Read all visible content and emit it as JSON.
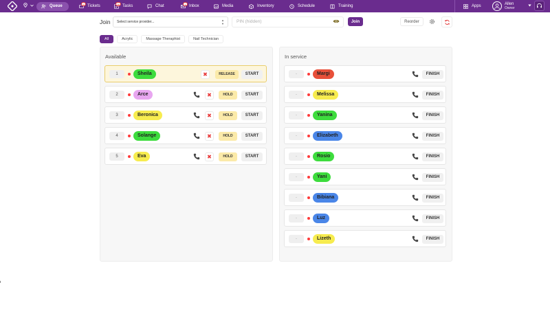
{
  "nav": {
    "items": [
      {
        "label": "Queue",
        "icon": "users-icon"
      },
      {
        "label": "Tickets",
        "icon": "ticket-icon",
        "badge": "5"
      },
      {
        "label": "Tasks",
        "icon": "tasks-icon",
        "badge": "26"
      },
      {
        "label": "Chat",
        "icon": "chat-icon"
      },
      {
        "label": "Inbox",
        "icon": "inbox-icon",
        "badge": "1"
      },
      {
        "label": "Media",
        "icon": "media-icon"
      },
      {
        "label": "Inventory",
        "icon": "inventory-icon"
      },
      {
        "label": "Schedule",
        "icon": "clock-icon"
      },
      {
        "label": "Training",
        "icon": "book-icon"
      },
      {
        "label": "Apps",
        "icon": "apps-icon"
      }
    ],
    "user": {
      "name": "Allen",
      "role": "Owner"
    }
  },
  "join": {
    "label": "Join",
    "provider_placeholder": "Select service provider...",
    "pin_placeholder": "PIN (hidden)",
    "join_button": "Join",
    "reorder_button": "Reorder"
  },
  "filters": [
    "All",
    "Acrylic",
    "Massage Theraphist",
    "Nail Technician"
  ],
  "available": {
    "title": "Available",
    "rows": [
      {
        "num": "1",
        "name": "Sheila",
        "color": "#3ddc3d",
        "action": "RELEASE",
        "start": "START",
        "highlight": true
      },
      {
        "num": "2",
        "name": "Arce",
        "color": "#e8a6f0",
        "action": "HOLD",
        "start": "START"
      },
      {
        "num": "3",
        "name": "Beronica",
        "color": "#f7ec4f",
        "action": "HOLD",
        "start": "START"
      },
      {
        "num": "4",
        "name": "Solange",
        "color": "#3ddc3d",
        "action": "HOLD",
        "start": "START"
      },
      {
        "num": "5",
        "name": "Eva",
        "color": "#f7ec4f",
        "action": "HOLD",
        "start": "START"
      }
    ]
  },
  "inservice": {
    "title": "In service",
    "rows": [
      {
        "dash": "-",
        "name": "Margi",
        "color": "#e8503a",
        "finish": "FINISH"
      },
      {
        "dash": "-",
        "name": "Melissa",
        "color": "#f7ec4f",
        "finish": "FINISH"
      },
      {
        "dash": "-",
        "name": "Yanina",
        "color": "#3ddc3d",
        "finish": "FINISH"
      },
      {
        "dash": "-",
        "name": "Elizabeth",
        "color": "#4a86e8",
        "finish": "FINISH"
      },
      {
        "dash": "-",
        "name": "Rosio",
        "color": "#3ddc3d",
        "finish": "FINISH"
      },
      {
        "dash": "-",
        "name": "Yani",
        "color": "#3ddc3d",
        "finish": "FINISH"
      },
      {
        "dash": "-",
        "name": "Bibiana",
        "color": "#4a86e8",
        "finish": "FINISH"
      },
      {
        "dash": "-",
        "name": "Luz",
        "color": "#4a86e8",
        "finish": "FINISH"
      },
      {
        "dash": "-",
        "name": "Lizeth",
        "color": "#f7ec4f",
        "finish": "FINISH"
      }
    ]
  },
  "colors": {
    "brand": "#6a2c8e",
    "hold": "#fbeaa9",
    "status": "#ff3a3a"
  }
}
